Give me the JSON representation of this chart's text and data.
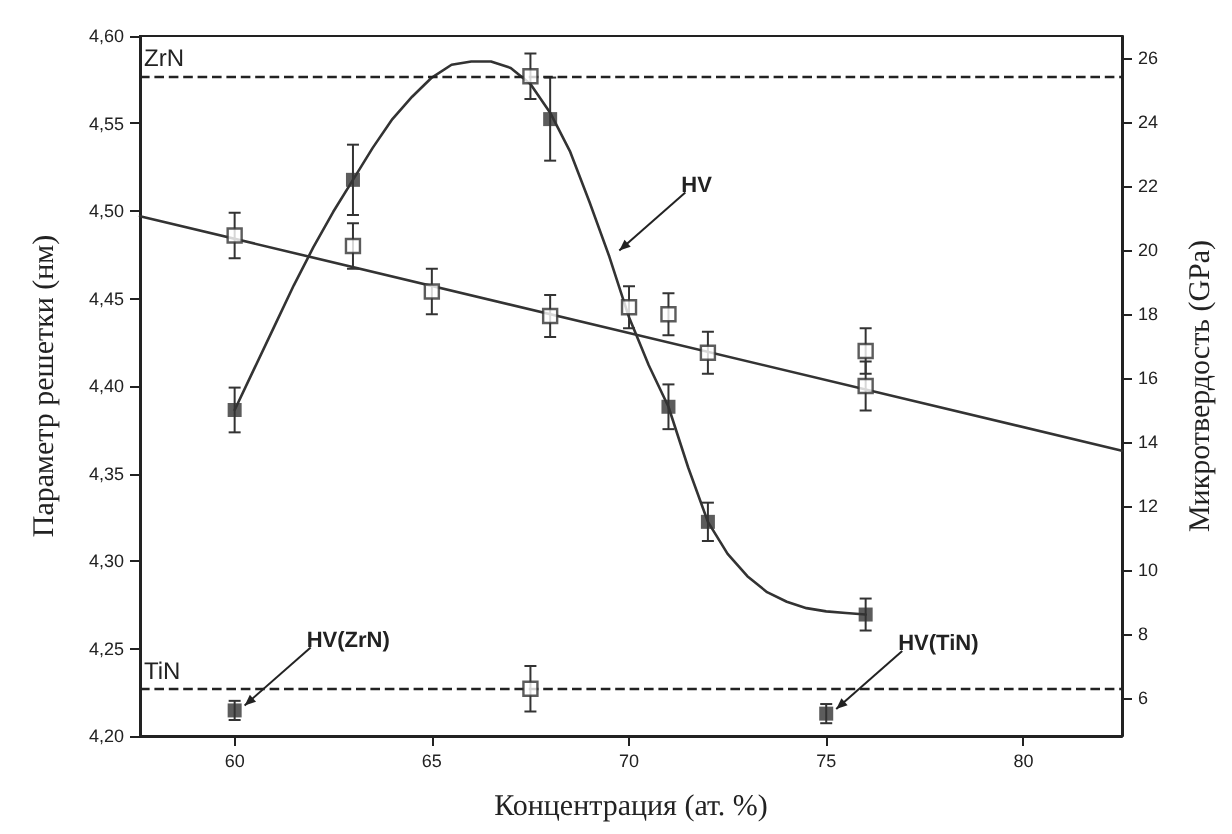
{
  "chart_data": {
    "type": "scatter",
    "xlabel": "Концентрация (ат. %)",
    "ylabel": "Параметр решетки (нм)",
    "y2label": "Микротвердость (GPa)",
    "xlim": [
      57.6,
      82.5
    ],
    "xticks": [
      60,
      65,
      70,
      75,
      80
    ],
    "ylim": [
      4.2,
      4.6
    ],
    "yticks": [
      {
        "value": 4.2,
        "label": "4,20"
      },
      {
        "value": 4.25,
        "label": "4,25"
      },
      {
        "value": 4.3,
        "label": "4,30"
      },
      {
        "value": 4.35,
        "label": "4,35"
      },
      {
        "value": 4.4,
        "label": "4,40"
      },
      {
        "value": 4.45,
        "label": "4,45"
      },
      {
        "value": 4.5,
        "label": "4,50"
      },
      {
        "value": 4.55,
        "label": "4,55"
      },
      {
        "value": 4.6,
        "label": "4,60"
      }
    ],
    "y2lim": [
      4.8,
      26.7
    ],
    "y2ticks": [
      6,
      8,
      10,
      12,
      14,
      16,
      18,
      20,
      22,
      24,
      26
    ],
    "grid": false,
    "marker": "square",
    "series": [
      {
        "color": "#333333",
        "x": [
          60,
          63,
          65,
          67.5,
          67.5,
          68,
          70,
          71,
          72,
          76,
          76
        ],
        "values": [
          4.486,
          4.48,
          4.454,
          4.577,
          4.227,
          4.44,
          4.445,
          4.441,
          4.419,
          4.42,
          4.4
        ],
        "errors": [
          0.013,
          0.013,
          0.013,
          0.013,
          0.013,
          0.012,
          0.012,
          0.012,
          0.012,
          0.013,
          0.014
        ]
      },
      {
        "type": "line",
        "color": "#333333",
        "marker": "none",
        "x": [
          57.6,
          82.5
        ],
        "values": [
          4.497,
          4.363
        ]
      },
      {
        "color": "#333333",
        "axis": "y2",
        "x": [
          60,
          63,
          68,
          71,
          72,
          76
        ],
        "values": [
          15,
          22.2,
          24.1,
          15.1,
          11.5,
          8.6
        ],
        "errors": [
          0.7,
          1.1,
          1.3,
          0.7,
          0.6,
          0.5
        ]
      },
      {
        "type": "line",
        "color": "#333333",
        "axis": "y2",
        "marker": "none",
        "x": [
          60,
          60.5,
          61,
          61.5,
          62,
          62.5,
          63,
          63.5,
          64,
          64.5,
          65,
          65.5,
          66,
          66.5,
          67,
          67.5,
          68,
          68.5,
          69,
          69.5,
          70,
          70.5,
          71,
          71.5,
          72,
          72.5,
          73,
          73.5,
          74,
          74.5,
          75,
          75.5,
          76
        ],
        "values": [
          15,
          16.3,
          17.6,
          18.9,
          20.1,
          21.2,
          22.2,
          23.2,
          24.1,
          24.8,
          25.4,
          25.8,
          25.9,
          25.9,
          25.7,
          25.2,
          24.3,
          23.1,
          21.5,
          19.8,
          17.9,
          16.4,
          15.1,
          13.2,
          11.5,
          10.5,
          9.8,
          9.3,
          9,
          8.8,
          8.7,
          8.65,
          8.6
        ]
      },
      {
        "color": "#333333",
        "axis": "y2",
        "x": [
          60,
          75
        ],
        "values": [
          5.6,
          5.5
        ],
        "errors": [
          0.3,
          0.3
        ]
      }
    ],
    "ref_lines": [
      {
        "axis": "y",
        "value": 4.577,
        "label": "ZrN",
        "line_style": "dashed"
      },
      {
        "axis": "y",
        "value": 4.227,
        "label": "TiN",
        "line_style": "dashed"
      }
    ],
    "annotations": [
      {
        "text": "HV",
        "x": 69.5,
        "y": 4.474
      },
      {
        "text": "HV(ZrN)",
        "x": 60,
        "y": 4.214
      },
      {
        "text": "HV(TiN)",
        "x": 75,
        "y": 4.212
      }
    ]
  }
}
